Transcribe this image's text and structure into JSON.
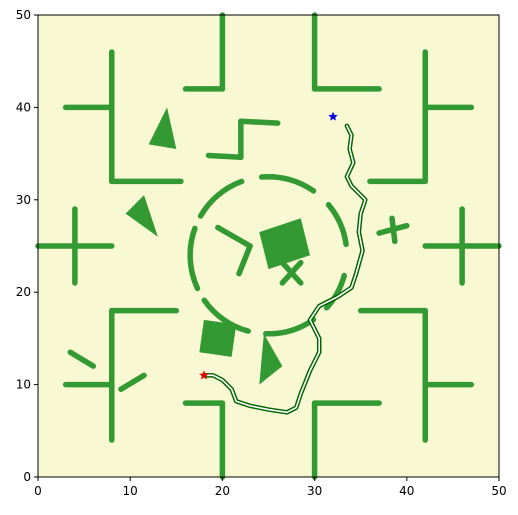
{
  "axes": {
    "xlim": [
      0,
      50
    ],
    "ylim": [
      0,
      50
    ],
    "xticks": [
      "0",
      "10",
      "20",
      "30",
      "40",
      "50"
    ],
    "yticks": [
      "0",
      "10",
      "20",
      "30",
      "40",
      "50"
    ],
    "grid": false
  },
  "colors": {
    "background": "#f8f8d2",
    "obstacle": "#339933",
    "path": "#006400",
    "start_marker": "#dd0000",
    "goal_marker": "#0000dd"
  },
  "map": {
    "walls": [
      [
        [
          8,
          46
        ],
        [
          8,
          32
        ]
      ],
      [
        [
          8,
          32
        ],
        [
          15.5,
          32
        ]
      ],
      [
        [
          3,
          40
        ],
        [
          8,
          40
        ]
      ],
      [
        [
          16,
          42
        ],
        [
          20,
          42
        ]
      ],
      [
        [
          20,
          42
        ],
        [
          20,
          50
        ]
      ],
      [
        [
          30,
          50
        ],
        [
          30,
          42
        ]
      ],
      [
        [
          30,
          42
        ],
        [
          37,
          42
        ]
      ],
      [
        [
          42,
          46
        ],
        [
          42,
          32
        ]
      ],
      [
        [
          42,
          32
        ],
        [
          36,
          32
        ]
      ],
      [
        [
          42,
          40
        ],
        [
          47,
          40
        ]
      ],
      [
        [
          8,
          4
        ],
        [
          8,
          18
        ]
      ],
      [
        [
          8,
          18
        ],
        [
          15,
          18
        ]
      ],
      [
        [
          3,
          10
        ],
        [
          8,
          10
        ]
      ],
      [
        [
          16,
          8
        ],
        [
          20,
          8
        ]
      ],
      [
        [
          20,
          8
        ],
        [
          20,
          0
        ]
      ],
      [
        [
          30,
          0
        ],
        [
          30,
          8
        ]
      ],
      [
        [
          30,
          8
        ],
        [
          37,
          8
        ]
      ],
      [
        [
          42,
          4
        ],
        [
          42,
          18
        ]
      ],
      [
        [
          42,
          18
        ],
        [
          35,
          18
        ]
      ],
      [
        [
          42,
          10
        ],
        [
          47,
          10
        ]
      ],
      [
        [
          0,
          25
        ],
        [
          8,
          25
        ]
      ],
      [
        [
          4,
          29
        ],
        [
          4,
          21
        ]
      ],
      [
        [
          42,
          25
        ],
        [
          50,
          25
        ]
      ],
      [
        [
          46,
          29
        ],
        [
          46,
          21
        ]
      ],
      [
        [
          18.5,
          34.8
        ],
        [
          22,
          34.6
        ]
      ],
      [
        [
          22,
          34.6
        ],
        [
          22,
          38.5
        ]
      ],
      [
        [
          22,
          38.5
        ],
        [
          26,
          38.3
        ]
      ],
      [
        [
          19.5,
          27
        ],
        [
          23,
          25
        ]
      ],
      [
        [
          23,
          25
        ],
        [
          21.8,
          22
        ]
      ],
      [
        [
          26.5,
          23.2
        ],
        [
          28.5,
          21
        ]
      ],
      [
        [
          26.5,
          21
        ],
        [
          28.5,
          23.2
        ]
      ],
      [
        [
          37,
          26.4
        ],
        [
          40,
          27.2
        ]
      ],
      [
        [
          38.4,
          28
        ],
        [
          38.7,
          25.5
        ]
      ],
      [
        [
          3.5,
          13.5
        ],
        [
          6,
          12
        ]
      ],
      [
        [
          9,
          9.5
        ],
        [
          11.5,
          11
        ]
      ]
    ],
    "triangles": [
      [
        [
          12,
          36
        ],
        [
          15,
          35.5
        ],
        [
          14,
          40
        ]
      ],
      [
        [
          9.5,
          28.5
        ],
        [
          11.5,
          30.5
        ],
        [
          13,
          26
        ]
      ],
      [
        [
          24,
          10
        ],
        [
          26.5,
          12
        ],
        [
          24.5,
          15.5
        ]
      ]
    ],
    "squares": [
      [
        [
          24,
          26.5
        ],
        [
          28.5,
          28
        ],
        [
          29.5,
          24
        ],
        [
          25,
          22.5
        ]
      ],
      [
        [
          18,
          17
        ],
        [
          21.5,
          16.5
        ],
        [
          21,
          13
        ],
        [
          17.5,
          13.5
        ]
      ]
    ],
    "ring": {
      "center": [
        25,
        24
      ],
      "radius": 8.5,
      "arc_segments_deg": [
        [
          8,
          40
        ],
        [
          55,
          95
        ],
        [
          110,
          150
        ],
        [
          160,
          205
        ],
        [
          215,
          255
        ],
        [
          268,
          305
        ],
        [
          318,
          345
        ]
      ]
    },
    "trajectory": [
      [
        33.5,
        38
      ],
      [
        34,
        37
      ],
      [
        33.8,
        35.5
      ],
      [
        34.2,
        34
      ],
      [
        33.5,
        32.5
      ],
      [
        34,
        31.5
      ],
      [
        35.5,
        30
      ],
      [
        35,
        28.5
      ],
      [
        34.8,
        26.5
      ],
      [
        35.2,
        24.5
      ],
      [
        34.5,
        22
      ],
      [
        34,
        20.5
      ],
      [
        32.5,
        19.5
      ],
      [
        30.5,
        18.5
      ],
      [
        29.5,
        17
      ],
      [
        30.5,
        15
      ],
      [
        30.5,
        13.5
      ],
      [
        29.5,
        11.5
      ],
      [
        28.5,
        9
      ],
      [
        28,
        7.5
      ],
      [
        27,
        7
      ],
      [
        25,
        7.3
      ],
      [
        23,
        7.7
      ],
      [
        21.5,
        8.2
      ],
      [
        21,
        9.5
      ],
      [
        20,
        10.5
      ],
      [
        19,
        11
      ],
      [
        18,
        11
      ]
    ],
    "start": {
      "x": 18,
      "y": 11
    },
    "goal": {
      "x": 32,
      "y": 39
    }
  }
}
